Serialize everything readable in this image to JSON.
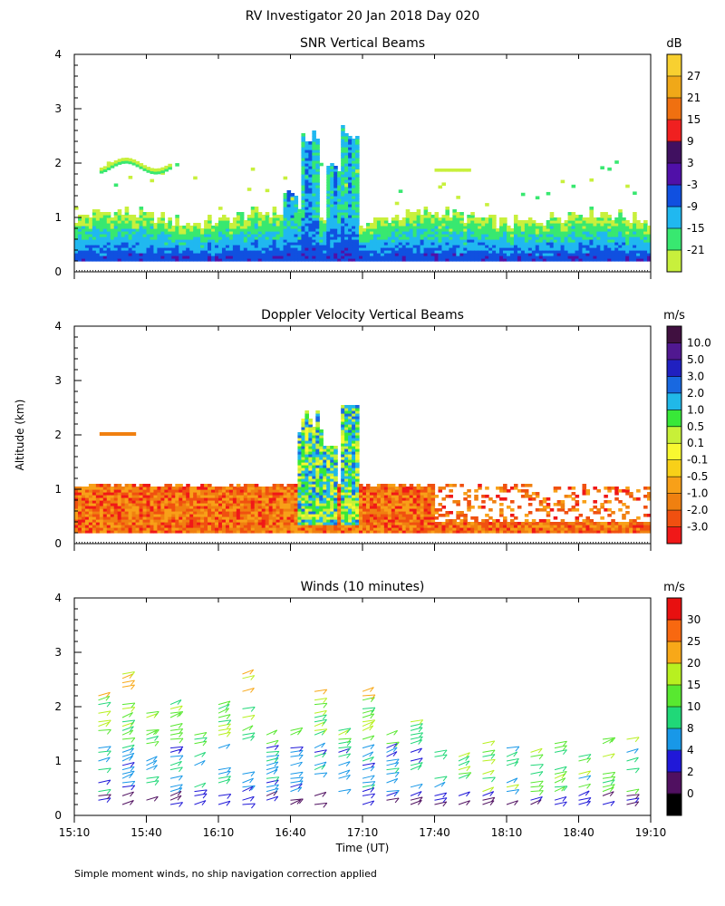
{
  "title": "RV Investigator  20 Jan 2018 Day 020",
  "footer_note": "Simple moment winds, no ship navigation correction applied",
  "chart_data": [
    {
      "type": "heatmap",
      "title": "SNR Vertical Beams",
      "ylabel": "Altitude (km)",
      "xlabel": "Time (UT)",
      "ylim": [
        0,
        4
      ],
      "yticks": [
        "0",
        "1",
        "2",
        "3",
        "4"
      ],
      "xlim": [
        "15:10",
        "19:10"
      ],
      "colorbar": {
        "unit": "dB",
        "levels": [
          "-21",
          "-15",
          "-9",
          "-3",
          "3",
          "9",
          "15",
          "21",
          "27"
        ],
        "colors": [
          "#c8f03c",
          "#38e870",
          "#20b8f0",
          "#1050e0",
          "#5010a8",
          "#401060",
          "#f02020",
          "#f07010",
          "#f0a818",
          "#f8d030"
        ]
      },
      "features": [
        {
          "label": "boundary layer",
          "t_start": "15:10",
          "t_end": "19:10",
          "top_km": 1.0
        },
        {
          "label": "elevated layer",
          "t_start": "15:20",
          "t_end": "15:50",
          "alt_km": 2.0
        },
        {
          "label": "convective column",
          "t": "16:48",
          "top_km": 2.6
        },
        {
          "label": "convective column",
          "t": "17:05",
          "top_km": 2.7
        }
      ]
    },
    {
      "type": "heatmap",
      "title": "Doppler Velocity Vertical Beams",
      "ylabel": "Altitude (km)",
      "xlabel": "Time (UT)",
      "ylim": [
        0,
        4
      ],
      "yticks": [
        "0",
        "1",
        "2",
        "3",
        "4"
      ],
      "xlim": [
        "15:10",
        "19:10"
      ],
      "colorbar": {
        "unit": "m/s",
        "levels": [
          "-3.0",
          "-2.0",
          "-1.0",
          "-0.5",
          "-0.1",
          "0.1",
          "0.5",
          "1.0",
          "2.0",
          "3.0",
          "5.0",
          "10.0"
        ],
        "colors": [
          "#f01818",
          "#f05010",
          "#f08010",
          "#f8a018",
          "#f8d018",
          "#f8f830",
          "#c8f038",
          "#38e838",
          "#20b8e8",
          "#1868e0",
          "#2020c0",
          "#501890",
          "#401040"
        ]
      }
    },
    {
      "type": "scatter",
      "title": "Winds (10 minutes)",
      "ylabel": "Altitude (km)",
      "xlabel": "Time (UT)",
      "ylim": [
        0,
        4
      ],
      "yticks": [
        "0",
        "1",
        "2",
        "3",
        "4"
      ],
      "x_ticks": [
        "15:10",
        "15:40",
        "16:10",
        "16:40",
        "17:10",
        "17:40",
        "18:10",
        "18:40",
        "19:10"
      ],
      "colorbar": {
        "unit": "m/s",
        "levels": [
          "0",
          "2",
          "4",
          "8",
          "10",
          "15",
          "20",
          "25",
          "30"
        ],
        "colors": [
          "#000000",
          "#501060",
          "#2018d8",
          "#1898e8",
          "#20d878",
          "#58e830",
          "#b8f020",
          "#f8a818",
          "#f86810",
          "#e81010"
        ]
      }
    }
  ]
}
